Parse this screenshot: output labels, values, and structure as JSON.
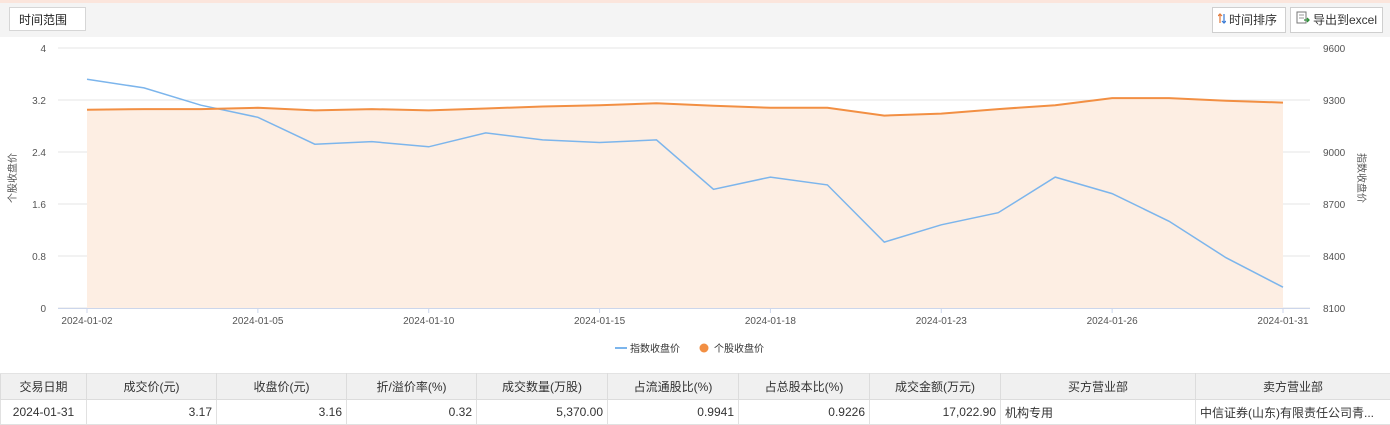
{
  "toolbar": {
    "range_label": "时间范围",
    "sort_label": "时间排序",
    "export_label": "导出到excel",
    "sort_icon": "sort-arrows-icon",
    "export_icon": "export-file-icon"
  },
  "chart_data": {
    "type": "line",
    "x": [
      "2024-01-02",
      "2024-01-03",
      "2024-01-04",
      "2024-01-05",
      "2024-01-08",
      "2024-01-09",
      "2024-01-10",
      "2024-01-11",
      "2024-01-12",
      "2024-01-15",
      "2024-01-16",
      "2024-01-17",
      "2024-01-18",
      "2024-01-19",
      "2024-01-22",
      "2024-01-23",
      "2024-01-24",
      "2024-01-25",
      "2024-01-26",
      "2024-01-29",
      "2024-01-30",
      "2024-01-31"
    ],
    "xticks": [
      "2024-01-02",
      "2024-01-05",
      "2024-01-10",
      "2024-01-15",
      "2024-01-18",
      "2024-01-23",
      "2024-01-26",
      "2024-01-31"
    ],
    "left_axis": {
      "label": "个股收盘价",
      "ylim": [
        0,
        4
      ],
      "ticks": [
        "0",
        "0.8",
        "1.6",
        "2.4",
        "3.2",
        "4"
      ]
    },
    "right_axis": {
      "label": "指数收盘价",
      "ylim": [
        8100,
        9600
      ],
      "ticks": [
        "8100",
        "8400",
        "8700",
        "9000",
        "9300",
        "9600"
      ]
    },
    "series": [
      {
        "name": "指数收盘价",
        "axis": "right",
        "color": "#7cb5ec",
        "values": [
          9420,
          9370,
          9270,
          9200,
          9045,
          9060,
          9030,
          9110,
          9070,
          9055,
          9070,
          8785,
          8855,
          8810,
          8480,
          8580,
          8650,
          8855,
          8760,
          8600,
          8390,
          8220
        ]
      },
      {
        "name": "个股收盘价",
        "axis": "left",
        "color": "#f28f43",
        "area": true,
        "area_color": "#fdeee3",
        "values": [
          3.05,
          3.06,
          3.06,
          3.08,
          3.04,
          3.06,
          3.04,
          3.07,
          3.1,
          3.12,
          3.15,
          3.11,
          3.08,
          3.08,
          2.96,
          2.99,
          3.06,
          3.12,
          3.23,
          3.23,
          3.19,
          3.16
        ]
      }
    ],
    "legend": {
      "placement": "bottom-center"
    },
    "grid": true
  },
  "table": {
    "headers": [
      "交易日期",
      "成交价(元)",
      "收盘价(元)",
      "折/溢价率(%)",
      "成交数量(万股)",
      "占流通股比(%)",
      "占总股本比(%)",
      "成交金额(万元)",
      "买方营业部",
      "卖方营业部"
    ],
    "rows": [
      [
        "2024-01-31",
        "3.17",
        "3.16",
        "0.32",
        "5,370.00",
        "0.9941",
        "0.9226",
        "17,022.90",
        "机构专用",
        "中信证券(山东)有限责任公司青..."
      ]
    ]
  }
}
